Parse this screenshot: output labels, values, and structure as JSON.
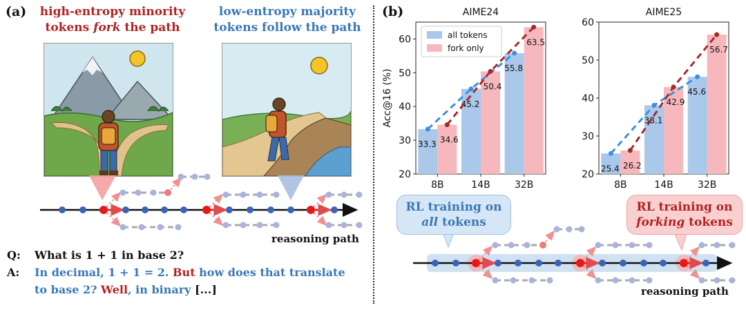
{
  "panel_a": {
    "label": "(a)",
    "heading_left": {
      "line1": "high-entropy minority",
      "line2_pre": "tokens ",
      "line2_em": "fork",
      "line2_post": " the path"
    },
    "heading_right": {
      "line1": "low-entropy majority",
      "line2": "tokens follow the path"
    },
    "reasoning_label": "reasoning path",
    "q_label": "Q:",
    "question": "What is 1 + 1 in base 2?",
    "a_label": "A:",
    "answer": {
      "seg1": "In decimal, 1 + 1 = 2.",
      "seg2": "But",
      "seg3": "how does that translate",
      "seg4": "to base 2?",
      "seg5": "Well",
      "seg6": ", in binary",
      "seg7": "[...]"
    }
  },
  "panel_b": {
    "label": "(b)",
    "callout_left": {
      "line1": "RL training on",
      "line2": "all",
      "line2_post": " tokens"
    },
    "callout_right": {
      "line1": "RL training on",
      "line2": "forking",
      "line2_post": " tokens"
    },
    "reasoning_label": "reasoning path"
  },
  "chart_data": [
    {
      "type": "bar",
      "title": "AIME24",
      "ylabel": "Acc@16 (%)",
      "categories": [
        "8B",
        "14B",
        "32B"
      ],
      "ylim": [
        20,
        65
      ],
      "yticks": [
        20,
        30,
        40,
        50,
        60
      ],
      "series": [
        {
          "name": "all tokens",
          "values": [
            33.3,
            45.2,
            55.8
          ],
          "color": "#a9c8ea"
        },
        {
          "name": "fork only",
          "values": [
            34.6,
            50.4,
            63.5
          ],
          "color": "#f7b8bd"
        }
      ],
      "legend": "top-left"
    },
    {
      "type": "bar",
      "title": "AIME25",
      "ylabel": "",
      "categories": [
        "8B",
        "14B",
        "32B"
      ],
      "ylim": [
        20,
        60
      ],
      "yticks": [
        20,
        30,
        40,
        50,
        60
      ],
      "series": [
        {
          "name": "all tokens",
          "values": [
            25.4,
            38.1,
            45.6
          ],
          "color": "#a9c8ea"
        },
        {
          "name": "fork only",
          "values": [
            26.2,
            42.9,
            56.7
          ],
          "color": "#f7b8bd"
        }
      ]
    }
  ]
}
